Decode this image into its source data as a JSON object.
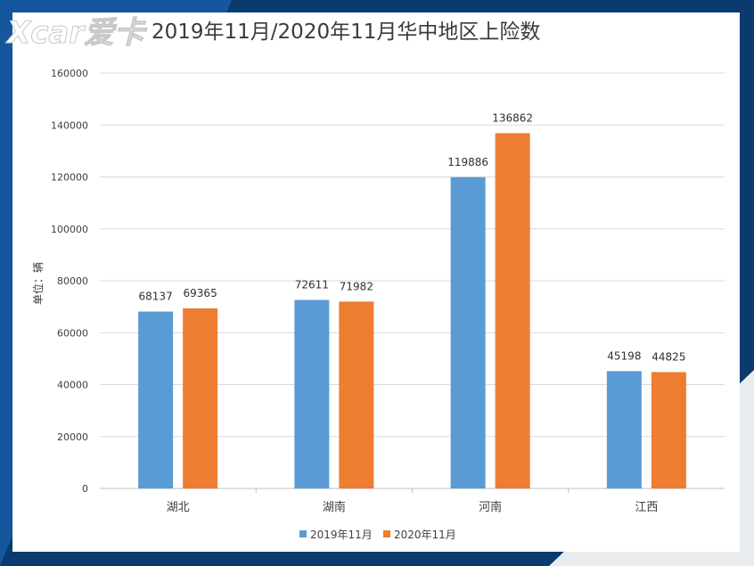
{
  "logo": {
    "text": "Xcar爱卡"
  },
  "chart_data": {
    "type": "bar",
    "title": "2019年11月/2020年11月华中地区上险数",
    "ylabel": "单位：辆",
    "xlabel": "",
    "categories": [
      "湖北",
      "湖南",
      "河南",
      "江西"
    ],
    "series": [
      {
        "name": "2019年11月",
        "color": "#5b9bd5",
        "values": [
          68137,
          72611,
          119886,
          45198
        ]
      },
      {
        "name": "2020年11月",
        "color": "#ed7d31",
        "values": [
          69365,
          71982,
          136862,
          44825
        ]
      }
    ],
    "ylim": [
      0,
      160000
    ],
    "yticks": [
      0,
      20000,
      40000,
      60000,
      80000,
      100000,
      120000,
      140000,
      160000
    ],
    "grid": true,
    "legend": "bottom"
  }
}
